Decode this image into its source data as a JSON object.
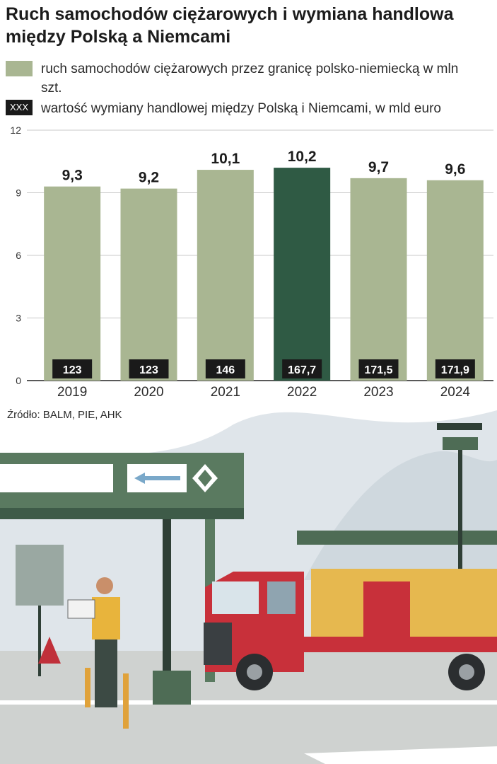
{
  "title": "Ruch samochodów ciężarowych i wymiana handlowa między Polską a Niemcami",
  "legend": [
    {
      "swatch": "",
      "label": "ruch samochodów ciężarowych przez granicę polsko-niemiecką w mln szt."
    },
    {
      "swatch": "XXX",
      "label": "wartość wymiany handlowej między Polską i Niemcami, w mld euro"
    }
  ],
  "source": "Źródło: BALM, PIE, AHK",
  "colors": {
    "bar": "#a9b692",
    "bar_highlight": "#2f5a44",
    "label_box": "#1a1a1a",
    "grid": "#c8c8c8"
  },
  "chart_data": {
    "type": "bar",
    "categories": [
      "2019",
      "2020",
      "2021",
      "2022",
      "2023",
      "2024"
    ],
    "series": [
      {
        "name": "ruch samochodów ciężarowych przez granicę polsko-niemiecką w mln szt.",
        "values": [
          9.3,
          9.2,
          10.1,
          10.2,
          9.7,
          9.6
        ],
        "labels": [
          "9,3",
          "9,2",
          "10,1",
          "10,2",
          "9,7",
          "9,6"
        ]
      },
      {
        "name": "wartość wymiany handlowej między Polską i Niemcami, w mld euro",
        "values": [
          123,
          123,
          146,
          167.7,
          171.5,
          171.9
        ],
        "labels": [
          "123",
          "123",
          "146",
          "167,7",
          "171,5",
          "171,9"
        ]
      }
    ],
    "highlight_index": 3,
    "yticks": [
      "0",
      "3",
      "6",
      "9",
      "12"
    ],
    "ylim": [
      0,
      12
    ],
    "grid": true,
    "title": "Ruch samochodów ciężarowych i wymiana handlowa między Polską a Niemcami",
    "xlabel": "",
    "ylabel": ""
  }
}
